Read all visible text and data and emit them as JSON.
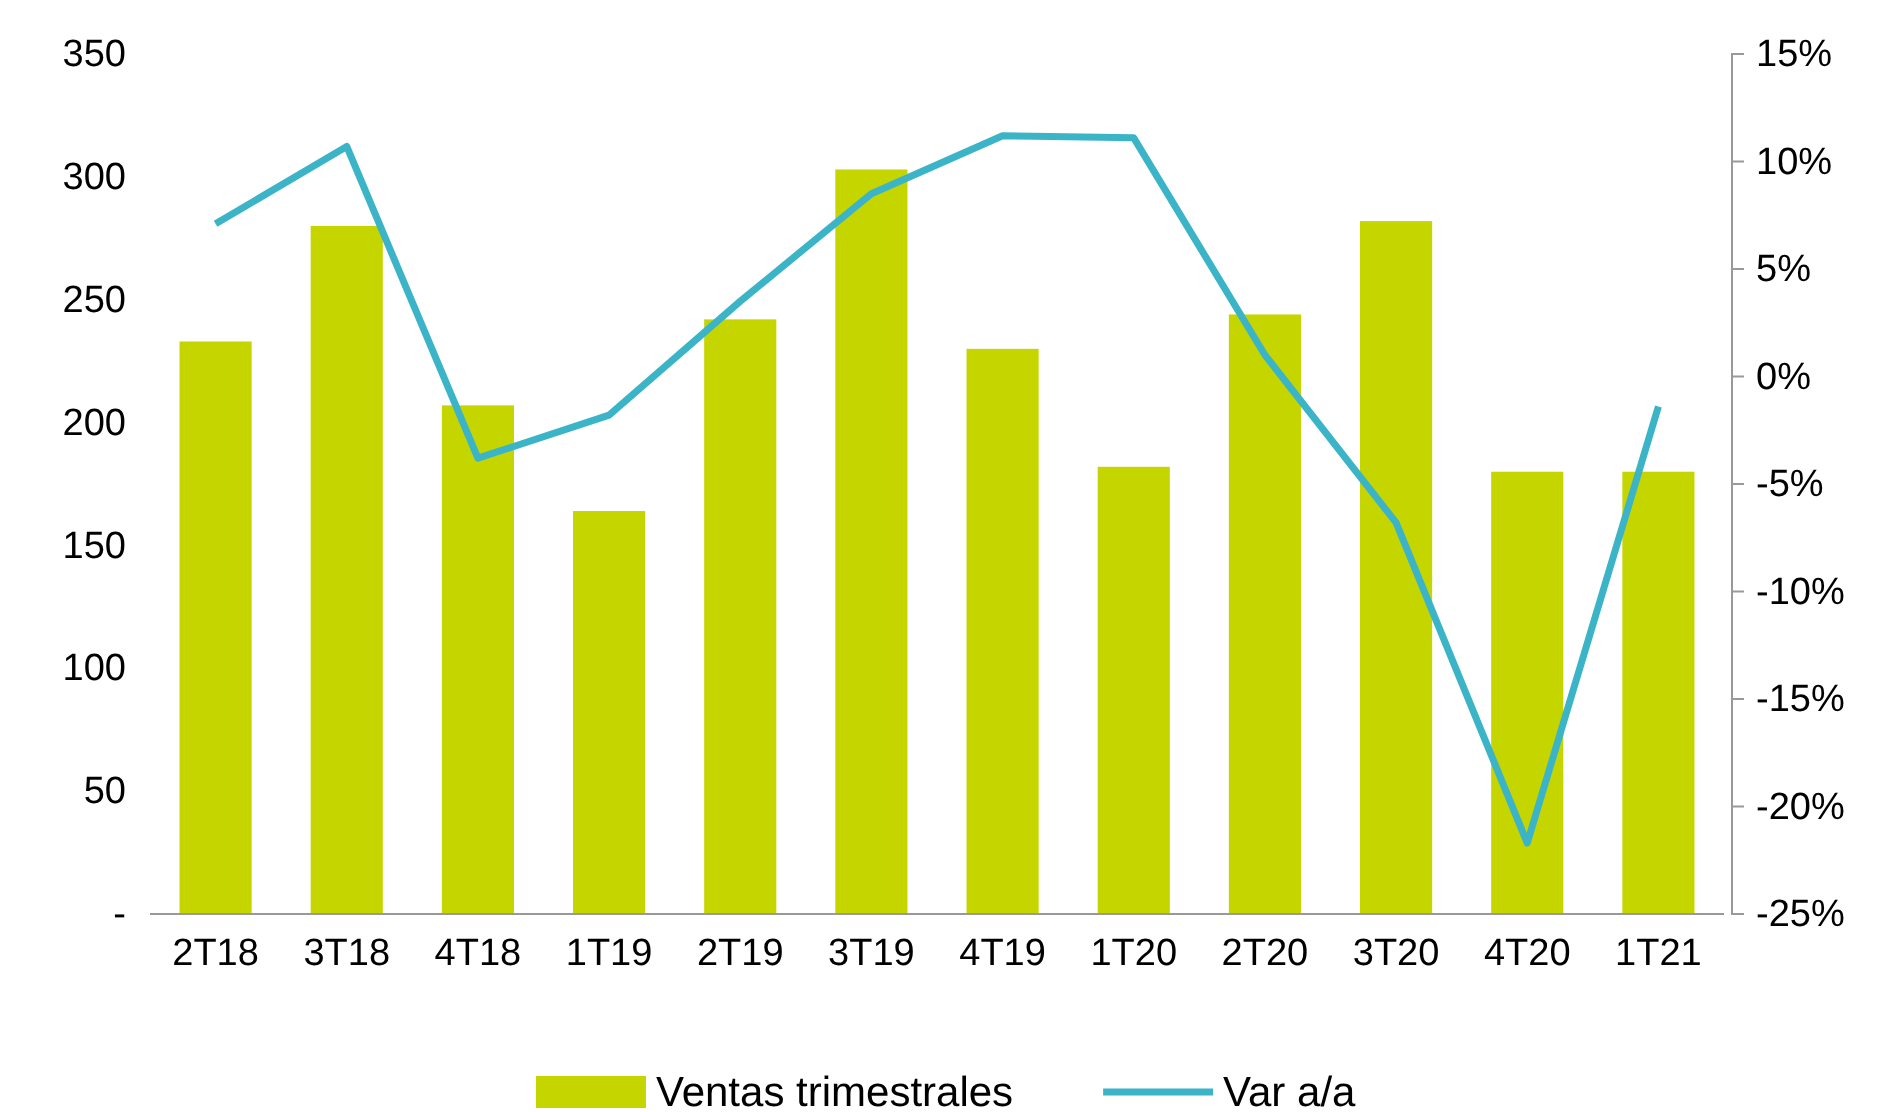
{
  "chart_data": {
    "type": "bar",
    "categories": [
      "2T18",
      "3T18",
      "4T18",
      "1T19",
      "2T19",
      "3T19",
      "4T19",
      "1T20",
      "2T20",
      "3T20",
      "4T20",
      "1T21"
    ],
    "series": [
      {
        "name": "Ventas trimestrales",
        "color": "#c5d500",
        "values": [
          233,
          280,
          207,
          164,
          242,
          303,
          230,
          182,
          244,
          282,
          180,
          180
        ]
      },
      {
        "name": "Var a/a",
        "type": "line",
        "axis": "y2",
        "color": "#3cb4c8",
        "values": [
          7.1,
          10.7,
          -3.8,
          -1.8,
          3.5,
          8.5,
          11.2,
          11.1,
          1.0,
          -6.8,
          -21.7,
          -1.4
        ]
      }
    ],
    "ylim": [
      0,
      350
    ],
    "yticks": [
      {
        "value": 0,
        "label": "-"
      },
      50,
      100,
      150,
      200,
      250,
      300,
      350
    ],
    "y2lim": [
      -25,
      15
    ],
    "y2ticks": [
      {
        "value": -25,
        "label": "-25%"
      },
      {
        "value": -20,
        "label": "-20%"
      },
      {
        "value": -15,
        "label": "-15%"
      },
      {
        "value": -10,
        "label": "-10%"
      },
      {
        "value": -5,
        "label": "-5%"
      },
      {
        "value": 0,
        "label": "0%"
      },
      {
        "value": 5,
        "label": "5%"
      },
      {
        "value": 10,
        "label": "10%"
      },
      {
        "value": 15,
        "label": "15%"
      }
    ],
    "grid": false,
    "legend": "bottom",
    "marker": "none",
    "line_style": "solid"
  }
}
